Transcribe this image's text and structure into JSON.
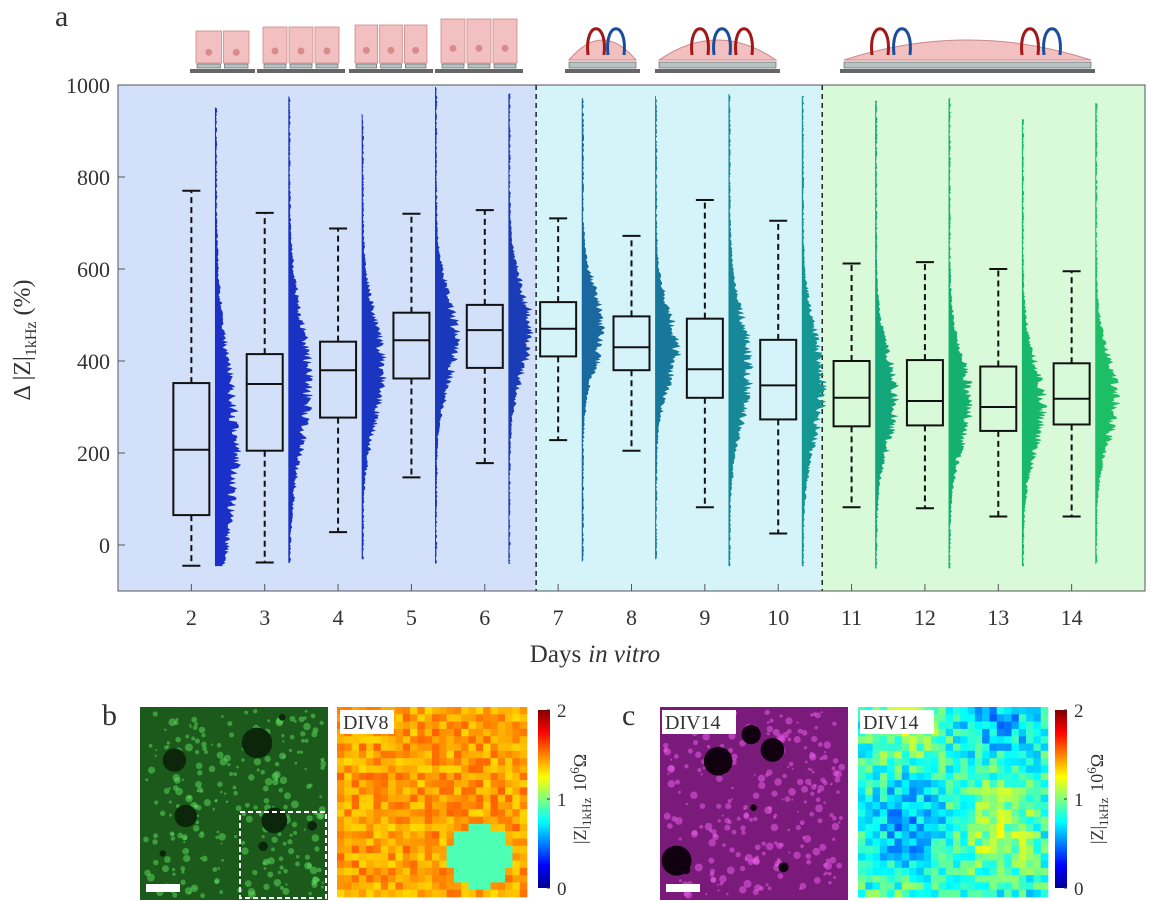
{
  "panel_labels": [
    "a",
    "b",
    "c"
  ],
  "chart_data": {
    "type": "box",
    "x": [
      2,
      3,
      4,
      5,
      6,
      7,
      8,
      9,
      10,
      11,
      12,
      13,
      14
    ],
    "xlim": [
      1,
      15
    ],
    "xticks": [
      2,
      3,
      4,
      5,
      6,
      7,
      8,
      9,
      10,
      11,
      12,
      13,
      14
    ],
    "ylim": [
      -100,
      1000
    ],
    "yticks": [
      0,
      200,
      400,
      600,
      800,
      1000
    ],
    "y_label": {
      "text": "Δ |Z|",
      "sub": "1kHz",
      "unit": "(%)"
    },
    "x_label": {
      "text": "Days",
      "italic": "in vitro"
    },
    "whisker_low": [
      -45,
      -38,
      28,
      147,
      178,
      228,
      205,
      82,
      25,
      82,
      80,
      62,
      62
    ],
    "q1": [
      65,
      205,
      277,
      362,
      385,
      410,
      380,
      320,
      273,
      258,
      260,
      248,
      262
    ],
    "median": [
      207,
      350,
      380,
      445,
      467,
      470,
      430,
      382,
      347,
      320,
      313,
      300,
      318
    ],
    "q3": [
      352,
      415,
      442,
      505,
      522,
      528,
      497,
      492,
      446,
      400,
      402,
      388,
      395
    ],
    "whisker_high": [
      770,
      722,
      688,
      720,
      728,
      710,
      672,
      750,
      705,
      612,
      615,
      600,
      595
    ],
    "dist_min": [
      -45,
      -38,
      -30,
      -40,
      -40,
      -35,
      -30,
      -45,
      -45,
      -50,
      -50,
      -45,
      -40
    ],
    "dist_max": [
      950,
      975,
      935,
      995,
      980,
      970,
      975,
      980,
      975,
      965,
      970,
      925,
      960
    ],
    "colors": [
      "#1a30c8",
      "#1a32c4",
      "#1a35c0",
      "#1a38bc",
      "#1a3cb6",
      "#1a68a0",
      "#17789c",
      "#168898",
      "#149692",
      "#12a67a",
      "#14b070",
      "#18b86a",
      "#1cbf66"
    ],
    "regions": [
      {
        "from": 1,
        "to": 6.7,
        "color": "#d3e0fa"
      },
      {
        "from": 6.7,
        "to": 10.6,
        "color": "#d5f4fa"
      },
      {
        "from": 10.6,
        "to": 15,
        "color": "#d8fad8"
      }
    ],
    "dividers": [
      6.7,
      10.6
    ]
  },
  "panel_b": {
    "map_label": "DIV8"
  },
  "panel_c": {
    "image_label": "DIV14",
    "map_label": "DIV14"
  },
  "colorbar": {
    "ticks": [
      0,
      1,
      2
    ],
    "label": "|Z|",
    "label_sub": "1kHz",
    "unit": "10",
    "unit_exp": "6",
    "unit_symbol": "Ω"
  }
}
